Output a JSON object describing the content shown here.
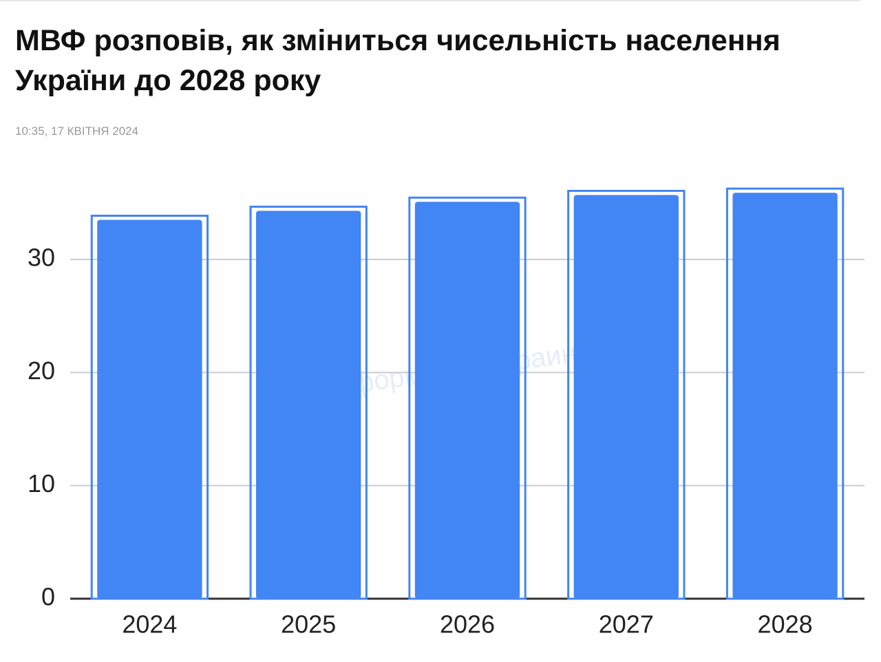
{
  "chart_data": {
    "type": "bar",
    "title": "МВФ розповів, як зміниться чисельність населення України до 2028 року",
    "subtitle": "10:35, 17 КВІТНЯ 2024",
    "watermark": "Информатор Украина",
    "categories": [
      "2024",
      "2025",
      "2026",
      "2027",
      "2028"
    ],
    "values": [
      33.5,
      34.3,
      35.1,
      35.7,
      35.9
    ],
    "color": "#4285f4",
    "ylim": [
      0,
      37
    ],
    "yticks": [
      0,
      10,
      20,
      30
    ],
    "grid": true
  }
}
